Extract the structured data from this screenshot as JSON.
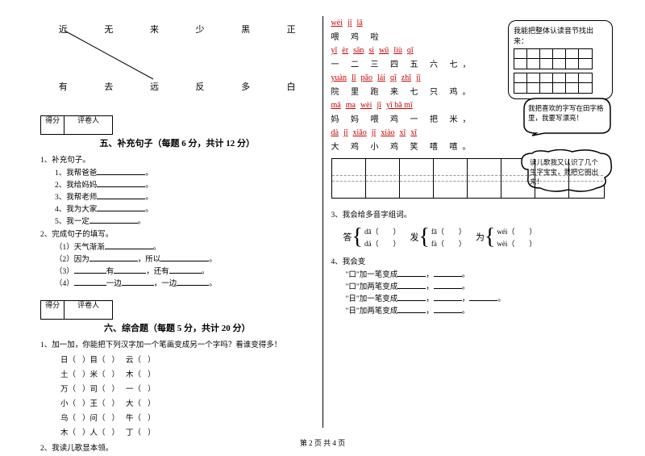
{
  "left": {
    "row1": [
      "近",
      "无",
      "来",
      "少",
      "黑",
      "正"
    ],
    "row2": [
      "有",
      "去",
      "远",
      "反",
      "多",
      "白"
    ],
    "scoreLabels": {
      "score": "得分",
      "marker": "评卷人"
    },
    "section5": {
      "title": "五、补充句子（每题 6 分，共计 12 分）",
      "q1": "1、补充句子。",
      "s1": "1、我帮爸爸",
      "s2": "2、我给妈妈",
      "s3": "3、我帮老师",
      "s4": "4、我为大家",
      "s5": "5、我一定",
      "q2": "2、完成句子的填写。",
      "c1": "（1）天气渐渐",
      "c1b": "。",
      "c2": "（2）因为",
      "c2b": "，所以",
      "c2c": "。",
      "c3": "（3）",
      "c3b": "有",
      "c3c": "，还有",
      "c3d": "。",
      "c4": "（4）",
      "c4b": "一边",
      "c4c": "，一边",
      "c4d": "。"
    },
    "section6": {
      "title": "六、综合题（每题 5 分，共计 20 分）",
      "q1": "1、加一加，你能把下列汉字加一个笔画变成另一个字吗？看谁变得多！",
      "rows": [
        [
          "日（",
          "）目（",
          "）",
          "云（",
          "）"
        ],
        [
          "土（",
          "）米（",
          "）",
          "木（",
          "）"
        ],
        [
          "万（",
          "）司（",
          "）",
          "一（",
          "）"
        ],
        [
          "小（",
          "）王（",
          "）",
          "大（",
          "）"
        ],
        [
          "乌（",
          "）问（",
          "）",
          "牛（",
          "）"
        ],
        [
          "木（",
          "）人（",
          "）",
          "丁（",
          "）"
        ]
      ],
      "q2": "2、我读儿歌显本领。"
    }
  },
  "right": {
    "poem": [
      {
        "py": [
          "wèi",
          "jī",
          "lā"
        ],
        "hz": "喂 鸡 啦"
      },
      {
        "py": [
          "yī",
          "èr",
          "sān",
          "sì",
          "wǔ",
          "liù",
          "qī"
        ],
        "hz": "一 二 三 四 五 六 七，"
      },
      {
        "py": [
          "yuàn",
          "lǐ",
          "pǎo",
          "lái",
          "qī",
          "zhī",
          "jī"
        ],
        "hz": "院 里 跑 来 七 只 鸡。"
      },
      {
        "py": [
          "mā",
          "ma",
          "wèi",
          "jī",
          "yī bǎ mǐ"
        ],
        "hz": "妈 妈 喂 鸡 一 把 米，"
      },
      {
        "py": [
          "dà",
          "jī",
          "xiǎo",
          "jī",
          "xiào",
          "xī",
          "xī"
        ],
        "hz": "大 鸡 小 鸡 笑 嘻 嘻。"
      }
    ],
    "bubble1": "我能把整体认读音节找出来：",
    "bubble2": "我把喜欢的字写在田字格里，我要写漂亮！",
    "bubble3": "读儿歌我又认识了几个生字宝宝，我把它圈出来！",
    "q3": "3、我会给多音字组词。",
    "poly": [
      {
        "hz": "答",
        "a": "dā（",
        "b": "dá（"
      },
      {
        "hz": "发",
        "a": "fā（",
        "b": "fà（"
      },
      {
        "hz": "为",
        "a": "wéi（",
        "b": "wèi（"
      }
    ],
    "q4": "4、我会变",
    "lines": [
      "\"口\"加一笔变成",
      "，",
      "。",
      "\"口\"加两笔变成",
      "，",
      "。",
      "\"日\"加一笔变成",
      "，",
      "，",
      "。",
      "\"日\"加两笔变成",
      "，",
      "。"
    ]
  },
  "footer": "第 2 页 共 4 页"
}
